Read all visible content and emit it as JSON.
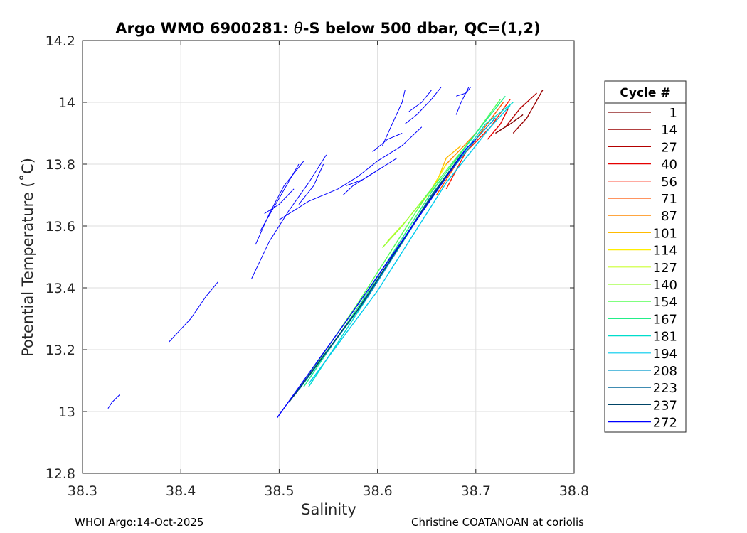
{
  "chart_data": {
    "type": "line",
    "title_prefix": "Argo WMO 6900281: ",
    "title_theta": "θ",
    "title_suffix": "-S below 500 dbar,  QC=(1,2)",
    "xlabel": "Salinity",
    "ylabel": "Potential Temperature (˚C)",
    "xlim": [
      38.3,
      38.8
    ],
    "ylim": [
      12.8,
      14.2
    ],
    "xticks": [
      38.3,
      38.4,
      38.5,
      38.6,
      38.7,
      38.8
    ],
    "xtick_labels": [
      "38.3",
      "38.4",
      "38.5",
      "38.6",
      "38.7",
      "38.8"
    ],
    "yticks": [
      12.8,
      13.0,
      13.2,
      13.4,
      13.6,
      13.8,
      14.0,
      14.2
    ],
    "ytick_labels": [
      "12.8",
      "13",
      "13.2",
      "13.4",
      "13.6",
      "13.8",
      "14",
      "14.2"
    ],
    "grid": true,
    "legend_title": "Cycle #",
    "legend_position": "outside-right",
    "series": [
      {
        "name": "1",
        "color": "#800000",
        "points": [
          [
            38.72,
            13.9
          ],
          [
            38.735,
            13.93
          ],
          [
            38.748,
            13.96
          ]
        ]
      },
      {
        "name": "14",
        "color": "#990000",
        "points": [
          [
            38.738,
            13.9
          ],
          [
            38.752,
            13.95
          ],
          [
            38.768,
            14.04
          ]
        ]
      },
      {
        "name": "27",
        "color": "#b30000",
        "points": [
          [
            38.73,
            13.92
          ],
          [
            38.745,
            13.98
          ],
          [
            38.762,
            14.03
          ]
        ]
      },
      {
        "name": "40",
        "color": "#e60000",
        "points": [
          [
            38.712,
            13.88
          ],
          [
            38.725,
            13.93
          ],
          [
            38.733,
            13.98
          ]
        ]
      },
      {
        "name": "56",
        "color": "#ff1a00",
        "points": [
          [
            38.67,
            13.72
          ],
          [
            38.69,
            13.84
          ],
          [
            38.715,
            13.92
          ],
          [
            38.735,
            14.01
          ]
        ]
      },
      {
        "name": "71",
        "color": "#ff5500",
        "points": [
          [
            38.66,
            13.7
          ],
          [
            38.68,
            13.8
          ],
          [
            38.7,
            13.88
          ],
          [
            38.728,
            14.0
          ]
        ]
      },
      {
        "name": "87",
        "color": "#ff8800",
        "points": [
          [
            38.655,
            13.72
          ],
          [
            38.67,
            13.8
          ],
          [
            38.685,
            13.85
          ],
          [
            38.7,
            13.9
          ]
        ]
      },
      {
        "name": "101",
        "color": "#ffbb00",
        "points": [
          [
            38.66,
            13.74
          ],
          [
            38.67,
            13.82
          ],
          [
            38.685,
            13.86
          ]
        ]
      },
      {
        "name": "114",
        "color": "#ffee00",
        "points": [
          [
            38.64,
            13.65
          ],
          [
            38.655,
            13.72
          ],
          [
            38.67,
            13.8
          ]
        ]
      },
      {
        "name": "127",
        "color": "#ccff33",
        "points": [
          [
            38.61,
            13.55
          ],
          [
            38.63,
            13.62
          ],
          [
            38.65,
            13.7
          ]
        ]
      },
      {
        "name": "140",
        "color": "#99ff33",
        "points": [
          [
            38.605,
            13.53
          ],
          [
            38.625,
            13.6
          ],
          [
            38.645,
            13.68
          ],
          [
            38.665,
            13.75
          ]
        ]
      },
      {
        "name": "154",
        "color": "#55ff55",
        "points": [
          [
            38.52,
            13.07
          ],
          [
            38.58,
            13.35
          ],
          [
            38.65,
            13.7
          ],
          [
            38.7,
            13.9
          ],
          [
            38.725,
            14.01
          ]
        ]
      },
      {
        "name": "167",
        "color": "#22ee88",
        "points": [
          [
            38.525,
            13.08
          ],
          [
            38.585,
            13.36
          ],
          [
            38.655,
            13.71
          ],
          [
            38.705,
            13.92
          ],
          [
            38.73,
            14.02
          ]
        ]
      },
      {
        "name": "181",
        "color": "#00ddcc",
        "points": [
          [
            38.53,
            13.08
          ],
          [
            38.59,
            13.37
          ],
          [
            38.66,
            13.72
          ],
          [
            38.71,
            13.93
          ],
          [
            38.738,
            14.0
          ]
        ]
      },
      {
        "name": "194",
        "color": "#00ccee",
        "points": [
          [
            38.53,
            13.09
          ],
          [
            38.6,
            13.39
          ],
          [
            38.67,
            13.74
          ],
          [
            38.715,
            13.92
          ],
          [
            38.735,
            13.99
          ]
        ]
      },
      {
        "name": "208",
        "color": "#0099cc",
        "points": [
          [
            38.52,
            13.07
          ],
          [
            38.59,
            13.37
          ],
          [
            38.66,
            13.72
          ],
          [
            38.7,
            13.88
          ],
          [
            38.72,
            13.95
          ]
        ]
      },
      {
        "name": "223",
        "color": "#006699",
        "points": [
          [
            38.515,
            13.05
          ],
          [
            38.585,
            13.35
          ],
          [
            38.655,
            13.7
          ],
          [
            38.69,
            13.85
          ]
        ]
      },
      {
        "name": "237",
        "color": "#004466",
        "points": [
          [
            38.51,
            13.03
          ],
          [
            38.58,
            13.33
          ],
          [
            38.65,
            13.67
          ],
          [
            38.685,
            13.83
          ]
        ]
      },
      {
        "name": "272",
        "color": "#0000ff",
        "points": [
          [
            38.498,
            12.98
          ],
          [
            38.57,
            13.3
          ],
          [
            38.64,
            13.62
          ],
          [
            38.69,
            13.85
          ],
          [
            38.7,
            13.88
          ]
        ]
      }
    ],
    "extra_profiles": {
      "color": "#0000ff",
      "lines": [
        [
          [
            38.326,
            13.01
          ],
          [
            38.33,
            13.03
          ],
          [
            38.338,
            13.055
          ]
        ],
        [
          [
            38.388,
            13.225
          ],
          [
            38.41,
            13.3
          ],
          [
            38.425,
            13.37
          ],
          [
            38.438,
            13.42
          ]
        ],
        [
          [
            38.472,
            13.43
          ],
          [
            38.49,
            13.55
          ],
          [
            38.51,
            13.65
          ],
          [
            38.53,
            13.74
          ],
          [
            38.548,
            13.83
          ]
        ],
        [
          [
            38.476,
            13.54
          ],
          [
            38.49,
            13.64
          ],
          [
            38.505,
            13.73
          ],
          [
            38.525,
            13.81
          ]
        ],
        [
          [
            38.48,
            13.58
          ],
          [
            38.5,
            13.69
          ],
          [
            38.52,
            13.8
          ]
        ],
        [
          [
            38.485,
            13.64
          ],
          [
            38.5,
            13.67
          ],
          [
            38.515,
            13.72
          ]
        ],
        [
          [
            38.52,
            13.67
          ],
          [
            38.535,
            13.73
          ],
          [
            38.545,
            13.8
          ]
        ],
        [
          [
            38.5,
            13.62
          ],
          [
            38.53,
            13.68
          ],
          [
            38.56,
            13.72
          ],
          [
            38.58,
            13.76
          ],
          [
            38.6,
            13.81
          ],
          [
            38.625,
            13.86
          ],
          [
            38.645,
            13.92
          ]
        ],
        [
          [
            38.565,
            13.7
          ],
          [
            38.575,
            13.73
          ],
          [
            38.59,
            13.76
          ],
          [
            38.62,
            13.82
          ]
        ],
        [
          [
            38.568,
            13.73
          ],
          [
            38.585,
            13.75
          ],
          [
            38.6,
            13.78
          ]
        ],
        [
          [
            38.595,
            13.84
          ],
          [
            38.61,
            13.88
          ],
          [
            38.625,
            13.9
          ]
        ],
        [
          [
            38.605,
            13.86
          ],
          [
            38.615,
            13.93
          ],
          [
            38.625,
            14.0
          ],
          [
            38.628,
            14.04
          ]
        ],
        [
          [
            38.628,
            13.93
          ],
          [
            38.64,
            13.96
          ],
          [
            38.655,
            14.01
          ],
          [
            38.665,
            14.05
          ]
        ],
        [
          [
            38.632,
            13.97
          ],
          [
            38.645,
            14.0
          ],
          [
            38.655,
            14.04
          ]
        ],
        [
          [
            38.68,
            13.96
          ],
          [
            38.685,
            14.0
          ],
          [
            38.693,
            14.05
          ]
        ],
        [
          [
            38.68,
            14.02
          ],
          [
            38.69,
            14.03
          ],
          [
            38.695,
            14.05
          ]
        ]
      ]
    }
  },
  "footer": {
    "left": "WHOI Argo:14-Oct-2025",
    "right": "Christine COATANOAN at coriolis"
  }
}
